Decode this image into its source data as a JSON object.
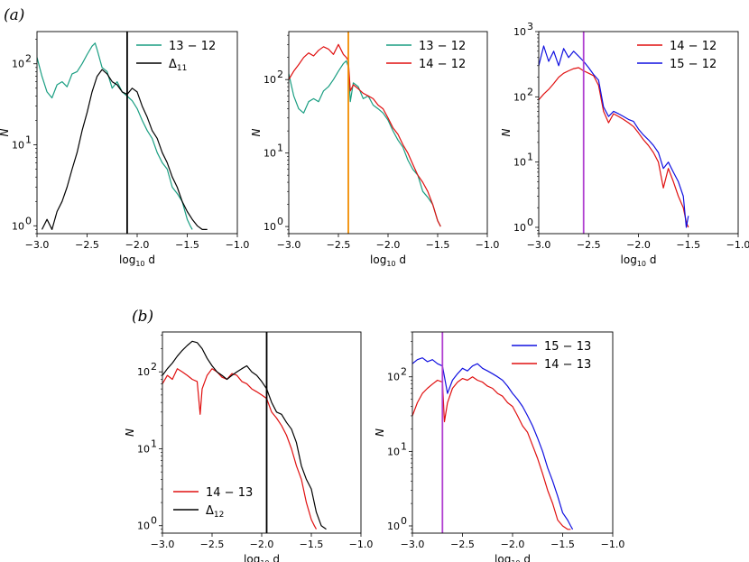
{
  "panel_labels": [
    "(a)",
    "(b)"
  ],
  "chart_data": [
    {
      "type": "line",
      "panel": "(a)",
      "xscale": "linear",
      "yscale": "log",
      "xlabel": "log10 d",
      "ylabel": "N",
      "xlim": [
        -3.0,
        -1.0
      ],
      "ylim": [
        0.8,
        250
      ],
      "xticks": [
        -3.0,
        -2.5,
        -2.0,
        -1.5,
        -1.0
      ],
      "xtick_labels": [
        "−3.0",
        "−2.5",
        "−2.0",
        "−1.5",
        "−1.0"
      ],
      "ytick_labels": [
        "10",
        "10",
        "10"
      ],
      "ytick_exponents": [
        "0",
        "1",
        "2"
      ],
      "ytick_values": [
        1,
        10,
        100
      ],
      "legend_position": "upper right",
      "vlines": [
        {
          "x": -2.1,
          "color": "#000000"
        }
      ],
      "series": [
        {
          "name": "13 − 12",
          "legend": "13 − 12",
          "color": "#1a9e82",
          "x": [
            -3.0,
            -2.95,
            -2.9,
            -2.85,
            -2.8,
            -2.75,
            -2.7,
            -2.65,
            -2.6,
            -2.55,
            -2.5,
            -2.45,
            -2.42,
            -2.4,
            -2.35,
            -2.3,
            -2.25,
            -2.2,
            -2.15,
            -2.1,
            -2.05,
            -2.0,
            -1.95,
            -1.9,
            -1.85,
            -1.8,
            -1.75,
            -1.7,
            -1.65,
            -1.6,
            -1.55,
            -1.5,
            -1.47,
            -1.45
          ],
          "y": [
            120,
            70,
            45,
            38,
            55,
            60,
            52,
            75,
            80,
            100,
            130,
            165,
            180,
            150,
            90,
            80,
            50,
            60,
            45,
            40,
            35,
            28,
            20,
            15,
            12,
            8,
            6,
            5,
            3,
            2.5,
            2,
            1.2,
            1,
            0.9
          ]
        },
        {
          "name": "Δ11",
          "legend": "Δ",
          "legend_sub": "11",
          "color": "#000000",
          "x": [
            -2.95,
            -2.9,
            -2.85,
            -2.8,
            -2.75,
            -2.7,
            -2.65,
            -2.6,
            -2.55,
            -2.5,
            -2.45,
            -2.4,
            -2.35,
            -2.3,
            -2.25,
            -2.2,
            -2.15,
            -2.1,
            -2.05,
            -2.0,
            -1.95,
            -1.9,
            -1.85,
            -1.8,
            -1.75,
            -1.7,
            -1.65,
            -1.6,
            -1.55,
            -1.5,
            -1.45,
            -1.4,
            -1.35,
            -1.3
          ],
          "y": [
            0.9,
            1.2,
            0.9,
            1.5,
            2,
            3,
            5,
            8,
            15,
            25,
            45,
            70,
            85,
            75,
            60,
            55,
            45,
            42,
            50,
            45,
            30,
            22,
            15,
            12,
            8,
            6,
            4,
            3,
            2,
            1.5,
            1.2,
            1,
            0.9,
            0.9
          ]
        }
      ]
    },
    {
      "type": "line",
      "panel": "(a)",
      "xscale": "linear",
      "yscale": "log",
      "xlabel": "log10 d",
      "ylabel": "N",
      "xlim": [
        -3.0,
        -1.0
      ],
      "ylim": [
        0.8,
        450
      ],
      "xticks": [
        -3.0,
        -2.5,
        -2.0,
        -1.5,
        -1.0
      ],
      "xtick_labels": [
        "−3.0",
        "−2.5",
        "−2.0",
        "−1.5",
        "−1.0"
      ],
      "ytick_labels": [
        "10",
        "10",
        "10"
      ],
      "ytick_exponents": [
        "0",
        "1",
        "2"
      ],
      "ytick_values": [
        1,
        10,
        100
      ],
      "legend_position": "upper right",
      "vlines": [
        {
          "x": -2.4,
          "color": "#f28c00"
        }
      ],
      "series": [
        {
          "name": "13 − 12",
          "legend": "13 − 12",
          "color": "#1a9e82",
          "x": [
            -3.0,
            -2.95,
            -2.9,
            -2.85,
            -2.8,
            -2.75,
            -2.7,
            -2.65,
            -2.6,
            -2.55,
            -2.5,
            -2.45,
            -2.42,
            -2.4,
            -2.38,
            -2.35,
            -2.3,
            -2.25,
            -2.2,
            -2.15,
            -2.1,
            -2.05,
            -2.0,
            -1.95,
            -1.9,
            -1.85,
            -1.8,
            -1.75,
            -1.7,
            -1.65,
            -1.6,
            -1.55,
            -1.5,
            -1.47
          ],
          "y": [
            120,
            60,
            40,
            35,
            50,
            55,
            50,
            70,
            80,
            100,
            130,
            165,
            180,
            150,
            50,
            90,
            80,
            55,
            60,
            45,
            40,
            35,
            28,
            20,
            15,
            12,
            8,
            6,
            5,
            3,
            2.5,
            2,
            1.2,
            1
          ]
        },
        {
          "name": "14 − 12",
          "legend": "14 − 12",
          "color": "#e01010",
          "x": [
            -3.0,
            -2.95,
            -2.9,
            -2.85,
            -2.8,
            -2.75,
            -2.7,
            -2.65,
            -2.6,
            -2.55,
            -2.5,
            -2.45,
            -2.42,
            -2.4,
            -2.38,
            -2.35,
            -2.3,
            -2.25,
            -2.2,
            -2.15,
            -2.1,
            -2.05,
            -2.0,
            -1.95,
            -1.9,
            -1.85,
            -1.8,
            -1.75,
            -1.7,
            -1.65,
            -1.6,
            -1.55,
            -1.5,
            -1.47
          ],
          "y": [
            100,
            130,
            160,
            200,
            230,
            210,
            250,
            280,
            260,
            220,
            300,
            220,
            200,
            180,
            70,
            85,
            75,
            65,
            60,
            55,
            45,
            40,
            30,
            22,
            18,
            13,
            10,
            7,
            5,
            4,
            3,
            2,
            1.2,
            1
          ]
        }
      ]
    },
    {
      "type": "line",
      "panel": "(a)",
      "xscale": "linear",
      "yscale": "log",
      "xlabel": "log10 d",
      "ylabel": "N",
      "xlim": [
        -3.0,
        -1.0
      ],
      "ylim": [
        0.8,
        1000
      ],
      "xticks": [
        -3.0,
        -2.5,
        -2.0,
        -1.5,
        -1.0
      ],
      "xtick_labels": [
        "−3.0",
        "−2.5",
        "−2.0",
        "−1.5",
        "−1.0"
      ],
      "ytick_labels": [
        "10",
        "10",
        "10",
        "10"
      ],
      "ytick_exponents": [
        "0",
        "1",
        "2",
        "3"
      ],
      "ytick_values": [
        1,
        10,
        100,
        1000
      ],
      "legend_position": "upper right",
      "vlines": [
        {
          "x": -2.55,
          "color": "#b040d0"
        }
      ],
      "series": [
        {
          "name": "14 − 12",
          "legend": "14 − 12",
          "color": "#e01010",
          "x": [
            -3.0,
            -2.95,
            -2.9,
            -2.85,
            -2.8,
            -2.75,
            -2.7,
            -2.65,
            -2.6,
            -2.55,
            -2.5,
            -2.45,
            -2.4,
            -2.35,
            -2.3,
            -2.25,
            -2.2,
            -2.15,
            -2.1,
            -2.05,
            -2.0,
            -1.95,
            -1.9,
            -1.85,
            -1.8,
            -1.75,
            -1.7,
            -1.65,
            -1.6,
            -1.55,
            -1.52,
            -1.5
          ],
          "y": [
            90,
            110,
            130,
            160,
            200,
            230,
            250,
            270,
            280,
            250,
            230,
            210,
            150,
            60,
            40,
            55,
            50,
            45,
            40,
            35,
            28,
            22,
            18,
            14,
            10,
            4,
            8,
            5,
            3,
            2,
            1.2,
            1
          ]
        },
        {
          "name": "15 − 12",
          "legend": "15 − 12",
          "color": "#1010e0",
          "x": [
            -3.0,
            -2.95,
            -2.9,
            -2.85,
            -2.8,
            -2.75,
            -2.7,
            -2.65,
            -2.6,
            -2.55,
            -2.5,
            -2.45,
            -2.4,
            -2.35,
            -2.3,
            -2.25,
            -2.2,
            -2.15,
            -2.1,
            -2.05,
            -2.0,
            -1.95,
            -1.9,
            -1.85,
            -1.8,
            -1.75,
            -1.7,
            -1.65,
            -1.6,
            -1.55,
            -1.52,
            -1.5
          ],
          "y": [
            300,
            600,
            350,
            500,
            300,
            550,
            400,
            500,
            420,
            350,
            280,
            220,
            180,
            70,
            50,
            60,
            55,
            50,
            45,
            42,
            32,
            26,
            22,
            18,
            14,
            8,
            10,
            7,
            5,
            3,
            1,
            1.5
          ]
        }
      ]
    },
    {
      "type": "line",
      "panel": "(b)",
      "xscale": "linear",
      "yscale": "log",
      "xlabel": "log10 d",
      "ylabel": "N",
      "xlim": [
        -3.0,
        -1.0
      ],
      "ylim": [
        0.8,
        330
      ],
      "xticks": [
        -3.0,
        -2.5,
        -2.0,
        -1.5,
        -1.0
      ],
      "xtick_labels": [
        "−3.0",
        "−2.5",
        "−2.0",
        "−1.5",
        "−1.0"
      ],
      "ytick_labels": [
        "10",
        "10",
        "10"
      ],
      "ytick_exponents": [
        "0",
        "1",
        "2"
      ],
      "ytick_values": [
        1,
        10,
        100
      ],
      "legend_position": "lower left",
      "vlines": [
        {
          "x": -1.95,
          "color": "#000000"
        }
      ],
      "series": [
        {
          "name": "14 − 13",
          "legend": "14 − 13",
          "color": "#e01010",
          "x": [
            -3.0,
            -2.95,
            -2.9,
            -2.85,
            -2.8,
            -2.75,
            -2.7,
            -2.65,
            -2.62,
            -2.6,
            -2.55,
            -2.5,
            -2.45,
            -2.4,
            -2.35,
            -2.3,
            -2.25,
            -2.2,
            -2.15,
            -2.1,
            -2.05,
            -2.0,
            -1.95,
            -1.9,
            -1.85,
            -1.8,
            -1.75,
            -1.7,
            -1.65,
            -1.6,
            -1.55,
            -1.5,
            -1.47,
            -1.45
          ],
          "y": [
            70,
            90,
            80,
            110,
            100,
            90,
            80,
            75,
            28,
            60,
            90,
            110,
            100,
            85,
            80,
            95,
            90,
            75,
            70,
            60,
            55,
            50,
            45,
            30,
            25,
            20,
            15,
            10,
            6,
            4,
            2,
            1.2,
            1,
            0.9
          ]
        },
        {
          "name": "Δ12",
          "legend": "Δ",
          "legend_sub": "12",
          "color": "#000000",
          "x": [
            -3.0,
            -2.95,
            -2.9,
            -2.85,
            -2.8,
            -2.75,
            -2.7,
            -2.65,
            -2.6,
            -2.55,
            -2.5,
            -2.45,
            -2.4,
            -2.35,
            -2.3,
            -2.25,
            -2.2,
            -2.15,
            -2.1,
            -2.05,
            -2.0,
            -1.95,
            -1.9,
            -1.85,
            -1.8,
            -1.75,
            -1.7,
            -1.65,
            -1.6,
            -1.55,
            -1.5,
            -1.45,
            -1.4,
            -1.35
          ],
          "y": [
            90,
            110,
            130,
            160,
            190,
            220,
            250,
            240,
            200,
            150,
            120,
            100,
            90,
            80,
            90,
            100,
            110,
            120,
            100,
            90,
            75,
            60,
            40,
            30,
            28,
            22,
            18,
            12,
            6,
            4,
            3,
            1.5,
            1,
            0.9
          ]
        }
      ]
    },
    {
      "type": "line",
      "panel": "(b)",
      "xscale": "linear",
      "yscale": "log",
      "xlabel": "log10 d",
      "ylabel": "N",
      "xlim": [
        -3.0,
        -1.0
      ],
      "ylim": [
        0.8,
        400
      ],
      "xticks": [
        -3.0,
        -2.5,
        -2.0,
        -1.5,
        -1.0
      ],
      "xtick_labels": [
        "−3.0",
        "−2.5",
        "−2.0",
        "−1.5",
        "−1.0"
      ],
      "ytick_labels": [
        "10",
        "10",
        "10"
      ],
      "ytick_exponents": [
        "0",
        "1",
        "2"
      ],
      "ytick_values": [
        1,
        10,
        100
      ],
      "legend_position": "upper right",
      "vlines": [
        {
          "x": -2.7,
          "color": "#b040d0"
        }
      ],
      "series": [
        {
          "name": "15 − 13",
          "legend": "15 − 13",
          "color": "#1010e0",
          "x": [
            -3.0,
            -2.95,
            -2.9,
            -2.85,
            -2.8,
            -2.75,
            -2.7,
            -2.65,
            -2.6,
            -2.55,
            -2.5,
            -2.45,
            -2.4,
            -2.35,
            -2.3,
            -2.25,
            -2.2,
            -2.15,
            -2.1,
            -2.05,
            -2.0,
            -1.95,
            -1.9,
            -1.85,
            -1.8,
            -1.75,
            -1.7,
            -1.65,
            -1.6,
            -1.55,
            -1.5,
            -1.45,
            -1.42,
            -1.4
          ],
          "y": [
            150,
            170,
            180,
            160,
            170,
            150,
            140,
            60,
            90,
            110,
            130,
            120,
            140,
            150,
            130,
            120,
            110,
            100,
            90,
            75,
            60,
            50,
            40,
            30,
            22,
            15,
            10,
            6,
            4,
            2.5,
            1.5,
            1.2,
            1,
            0.9
          ]
        },
        {
          "name": "14 − 13",
          "legend": "14 − 13",
          "color": "#e01010",
          "x": [
            -3.0,
            -2.95,
            -2.9,
            -2.85,
            -2.8,
            -2.75,
            -2.7,
            -2.68,
            -2.65,
            -2.6,
            -2.55,
            -2.5,
            -2.45,
            -2.4,
            -2.35,
            -2.3,
            -2.25,
            -2.2,
            -2.15,
            -2.1,
            -2.05,
            -2.0,
            -1.95,
            -1.9,
            -1.85,
            -1.8,
            -1.75,
            -1.7,
            -1.65,
            -1.6,
            -1.55,
            -1.5,
            -1.45,
            -1.42
          ],
          "y": [
            30,
            45,
            60,
            70,
            80,
            90,
            85,
            25,
            45,
            70,
            85,
            95,
            90,
            100,
            90,
            85,
            75,
            70,
            60,
            55,
            45,
            40,
            30,
            22,
            18,
            12,
            8,
            5,
            3,
            2,
            1.2,
            1,
            0.9,
            0.9
          ]
        }
      ]
    }
  ]
}
